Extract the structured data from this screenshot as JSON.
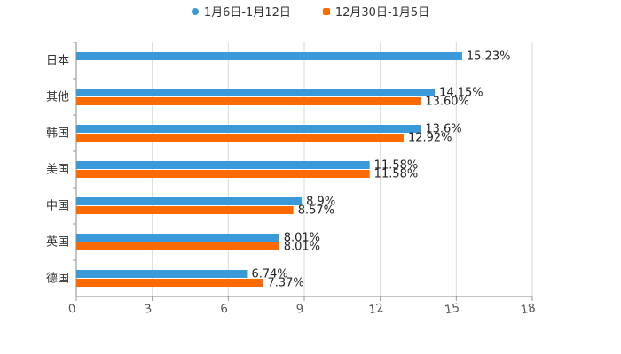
{
  "chart_data": {
    "type": "bar",
    "orientation": "horizontal",
    "categories": [
      "日本",
      "其他",
      "韩国",
      "美国",
      "中国",
      "英国",
      "德国"
    ],
    "series": [
      {
        "name": "1月6日-1月12日",
        "color": "#3a9ad9",
        "marker": "circle",
        "values": [
          15.23,
          14.15,
          13.6,
          11.58,
          8.9,
          8.01,
          6.74
        ],
        "labels": [
          "15.23%",
          "14.15%",
          "13.6%",
          "11.58%",
          "8.9%",
          "8.01%",
          "6.74%"
        ]
      },
      {
        "name": "12月30日-1月5日",
        "color": "#ff6a00",
        "marker": "square",
        "values": [
          null,
          13.6,
          12.92,
          11.58,
          8.57,
          8.01,
          7.37
        ],
        "labels": [
          "",
          "13.60%",
          "12.92%",
          "11.58%",
          "8.57%",
          "8.01%",
          "7.37%"
        ]
      }
    ],
    "xlim": [
      0,
      18
    ],
    "xticks": [
      0,
      3,
      6,
      9,
      12,
      15,
      18
    ],
    "xlabel": "",
    "ylabel": "",
    "grid": true,
    "legend_position": "top"
  }
}
